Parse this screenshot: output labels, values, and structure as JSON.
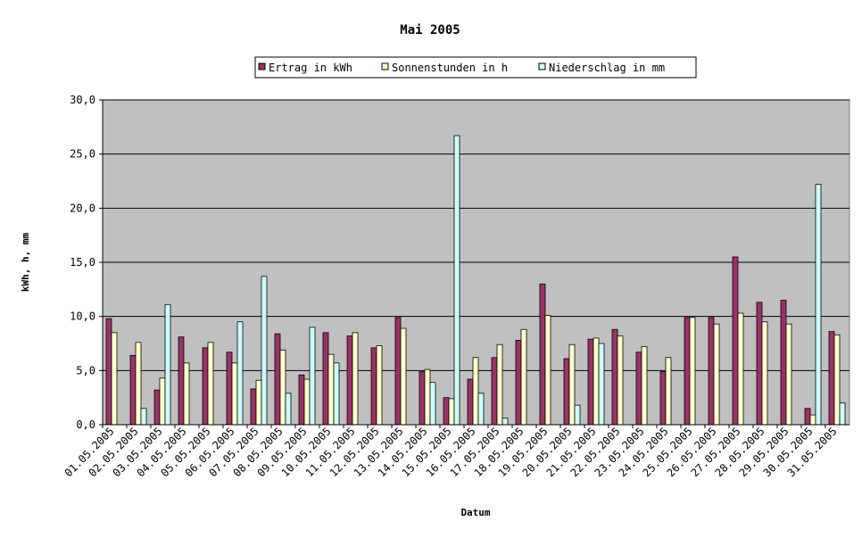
{
  "chart_data": {
    "type": "bar",
    "title": "Mai 2005",
    "xlabel": "Datum",
    "ylabel": "kWh, h, mm",
    "ylim": [
      0,
      30
    ],
    "yticks": [
      "0,0",
      "5,0",
      "10,0",
      "15,0",
      "20,0",
      "25,0",
      "30,0"
    ],
    "grid": true,
    "legend_position": "top",
    "background_color": "#c0c0c0",
    "categories": [
      "01.05.2005",
      "02.05.2005",
      "03.05.2005",
      "04.05.2005",
      "05.05.2005",
      "06.05.2005",
      "07.05.2005",
      "08.05.2005",
      "09.05.2005",
      "10.05.2005",
      "11.05.2005",
      "12.05.2005",
      "13.05.2005",
      "14.05.2005",
      "15.05.2005",
      "16.05.2005",
      "17.05.2005",
      "18.05.2005",
      "19.05.2005",
      "20.05.2005",
      "21.05.2005",
      "22.05.2005",
      "23.05.2005",
      "24.05.2005",
      "25.05.2005",
      "26.05.2005",
      "27.05.2005",
      "28.05.2005",
      "29.05.2005",
      "30.05.2005",
      "31.05.2005"
    ],
    "series": [
      {
        "name": "Ertrag in kWh",
        "color": "#993366",
        "values": [
          9.8,
          6.4,
          3.2,
          8.1,
          7.1,
          6.7,
          3.3,
          8.4,
          4.6,
          8.5,
          8.2,
          7.1,
          9.9,
          4.9,
          2.5,
          4.2,
          6.2,
          7.8,
          13.0,
          6.1,
          7.9,
          8.8,
          6.7,
          4.9,
          9.9,
          9.9,
          15.5,
          11.3,
          11.5,
          1.5,
          8.6
        ]
      },
      {
        "name": "Sonnenstunden in h",
        "color": "#ffffcc",
        "values": [
          8.5,
          7.6,
          4.3,
          5.7,
          7.6,
          5.7,
          4.1,
          6.9,
          4.2,
          6.5,
          8.5,
          7.3,
          8.9,
          5.1,
          2.4,
          6.2,
          7.4,
          8.8,
          10.1,
          7.4,
          8.0,
          8.2,
          7.2,
          6.2,
          9.9,
          9.3,
          10.3,
          9.5,
          9.3,
          0.9,
          8.3
        ]
      },
      {
        "name": "Niederschlag in mm",
        "color": "#ccffff",
        "values": [
          0,
          1.5,
          11.1,
          0,
          0,
          9.5,
          13.7,
          2.9,
          9.0,
          5.7,
          0,
          0,
          0,
          3.9,
          26.7,
          2.9,
          0.6,
          0,
          0,
          1.8,
          7.5,
          0,
          0,
          0,
          0,
          0,
          0,
          0,
          0,
          22.2,
          2.0
        ]
      }
    ]
  }
}
